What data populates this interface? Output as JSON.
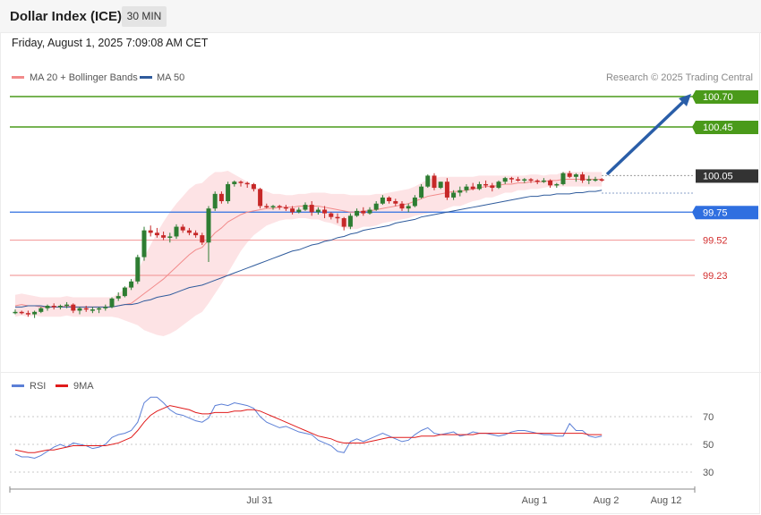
{
  "header": {
    "title": "Dollar Index (ICE)",
    "timeframe": "30 MIN"
  },
  "datetime": "Friday, August 1, 2025 7:09:08 AM CET",
  "legend": {
    "ma20": {
      "label": "MA 20 + Bollinger Bands",
      "color": "#f28b8b"
    },
    "ma50": {
      "label": "MA 50",
      "color": "#2f5b9c"
    },
    "credit": "Research © 2025 Trading Central"
  },
  "rsi_legend": {
    "rsi": {
      "label": "RSI",
      "color": "#5b7fd6"
    },
    "ma9": {
      "label": "9MA",
      "color": "#e01b1b"
    }
  },
  "levels": [
    {
      "value": "100.70",
      "kind": "resistance"
    },
    {
      "value": "100.45",
      "kind": "resistance"
    },
    {
      "value": "100.05",
      "kind": "last"
    },
    {
      "value": "99.75",
      "kind": "ma"
    },
    {
      "value": "99.52",
      "kind": "support"
    },
    {
      "value": "99.23",
      "kind": "support"
    }
  ],
  "colors": {
    "up": "#2e7d32",
    "down": "#c62828",
    "resistance": "#4a9a1a",
    "support": "#f4a0a0",
    "ma50_level": "#2f6fe0",
    "band": "#fde3e5"
  },
  "x_labels": [
    "Jul 31",
    "Aug 1",
    "Aug 2",
    "Aug 12"
  ],
  "rsi_levels": [
    "70",
    "50",
    "30"
  ],
  "chart_data": {
    "type": "candlestick",
    "title": "Dollar Index (ICE)",
    "timeframe": "30 MIN",
    "price_levels": [
      100.7,
      100.45,
      100.05,
      99.75,
      99.52,
      99.23
    ],
    "ohlc": [
      [
        98.93,
        98.95,
        98.91,
        98.93
      ],
      [
        98.93,
        98.94,
        98.91,
        98.92
      ],
      [
        98.92,
        98.94,
        98.89,
        98.91
      ],
      [
        98.91,
        98.94,
        98.88,
        98.93
      ],
      [
        98.93,
        98.97,
        98.92,
        98.96
      ],
      [
        98.96,
        98.99,
        98.94,
        98.98
      ],
      [
        98.98,
        99.0,
        98.95,
        98.97
      ],
      [
        98.97,
        98.99,
        98.95,
        98.98
      ],
      [
        98.98,
        99.01,
        98.96,
        98.99
      ],
      [
        98.99,
        99.0,
        98.92,
        98.94
      ],
      [
        98.94,
        98.97,
        98.91,
        98.96
      ],
      [
        98.96,
        98.98,
        98.93,
        98.95
      ],
      [
        98.95,
        98.97,
        98.92,
        98.95
      ],
      [
        98.95,
        98.97,
        98.92,
        98.96
      ],
      [
        98.96,
        98.99,
        98.94,
        98.97
      ],
      [
        98.97,
        99.05,
        98.96,
        99.04
      ],
      [
        99.04,
        99.09,
        99.02,
        99.06
      ],
      [
        99.06,
        99.14,
        99.05,
        99.13
      ],
      [
        99.13,
        99.2,
        99.11,
        99.18
      ],
      [
        99.18,
        99.4,
        99.16,
        99.38
      ],
      [
        99.38,
        99.63,
        99.35,
        99.6
      ],
      [
        99.6,
        99.64,
        99.55,
        99.58
      ],
      [
        99.58,
        99.62,
        99.54,
        99.56
      ],
      [
        99.56,
        99.59,
        99.52,
        99.54
      ],
      [
        99.54,
        99.58,
        99.5,
        99.55
      ],
      [
        99.55,
        99.65,
        99.53,
        99.63
      ],
      [
        99.63,
        99.65,
        99.58,
        99.6
      ],
      [
        99.6,
        99.62,
        99.56,
        99.58
      ],
      [
        99.58,
        99.6,
        99.54,
        99.56
      ],
      [
        99.56,
        99.58,
        99.48,
        99.5
      ],
      [
        99.5,
        99.8,
        99.34,
        99.78
      ],
      [
        99.78,
        99.92,
        99.76,
        99.9
      ],
      [
        99.9,
        99.92,
        99.82,
        99.84
      ],
      [
        99.84,
        100.0,
        99.82,
        99.98
      ],
      [
        99.98,
        100.01,
        99.96,
        100.0
      ],
      [
        100.0,
        100.01,
        99.96,
        99.99
      ],
      [
        99.99,
        100.0,
        99.95,
        99.98
      ],
      [
        99.98,
        99.99,
        99.92,
        99.94
      ],
      [
        99.94,
        99.95,
        99.78,
        99.8
      ],
      [
        99.8,
        99.82,
        99.78,
        99.79
      ],
      [
        99.79,
        99.81,
        99.77,
        99.8
      ],
      [
        99.8,
        99.81,
        99.77,
        99.79
      ],
      [
        99.79,
        99.81,
        99.76,
        99.78
      ],
      [
        99.78,
        99.8,
        99.73,
        99.75
      ],
      [
        99.75,
        99.79,
        99.74,
        99.77
      ],
      [
        99.77,
        99.83,
        99.76,
        99.81
      ],
      [
        99.81,
        99.84,
        99.72,
        99.75
      ],
      [
        99.75,
        99.79,
        99.73,
        99.77
      ],
      [
        99.77,
        99.8,
        99.7,
        99.74
      ],
      [
        99.74,
        99.75,
        99.69,
        99.71
      ],
      [
        99.71,
        99.74,
        99.66,
        99.7
      ],
      [
        99.7,
        99.71,
        99.6,
        99.63
      ],
      [
        99.63,
        99.74,
        99.61,
        99.72
      ],
      [
        99.72,
        99.78,
        99.71,
        99.76
      ],
      [
        99.76,
        99.79,
        99.72,
        99.74
      ],
      [
        99.74,
        99.79,
        99.73,
        99.77
      ],
      [
        99.77,
        99.84,
        99.76,
        99.82
      ],
      [
        99.82,
        99.89,
        99.81,
        99.87
      ],
      [
        99.87,
        99.88,
        99.82,
        99.84
      ],
      [
        99.84,
        99.86,
        99.8,
        99.82
      ],
      [
        99.82,
        99.84,
        99.76,
        99.78
      ],
      [
        99.78,
        99.82,
        99.75,
        99.8
      ],
      [
        99.8,
        99.89,
        99.79,
        99.87
      ],
      [
        99.87,
        99.98,
        99.86,
        99.96
      ],
      [
        99.96,
        100.06,
        99.95,
        100.05
      ],
      [
        100.05,
        100.07,
        99.93,
        99.95
      ],
      [
        99.95,
        100.0,
        99.94,
        100.0
      ],
      [
        100.0,
        100.03,
        99.85,
        99.87
      ],
      [
        99.87,
        99.93,
        99.85,
        99.91
      ],
      [
        99.91,
        99.96,
        99.88,
        99.93
      ],
      [
        99.93,
        99.98,
        99.91,
        99.96
      ],
      [
        99.96,
        99.99,
        99.93,
        99.94
      ],
      [
        99.94,
        100.0,
        99.93,
        99.98
      ],
      [
        99.98,
        100.01,
        99.95,
        99.97
      ],
      [
        99.97,
        99.99,
        99.92,
        99.95
      ],
      [
        99.95,
        100.01,
        99.94,
        100.0
      ],
      [
        100.0,
        100.04,
        99.98,
        100.03
      ],
      [
        100.03,
        100.04,
        99.99,
        100.02
      ],
      [
        100.02,
        100.04,
        100.0,
        100.01
      ],
      [
        100.01,
        100.03,
        99.99,
        100.02
      ],
      [
        100.02,
        100.03,
        99.99,
        100.01
      ],
      [
        100.01,
        100.02,
        99.98,
        100.0
      ],
      [
        100.0,
        100.03,
        99.99,
        100.01
      ],
      [
        100.01,
        100.02,
        99.95,
        99.97
      ],
      [
        99.97,
        99.99,
        99.95,
        99.98
      ],
      [
        99.98,
        100.08,
        99.97,
        100.07
      ],
      [
        100.07,
        100.09,
        100.03,
        100.04
      ],
      [
        100.04,
        100.07,
        100.0,
        100.06
      ],
      [
        100.06,
        100.08,
        99.99,
        100.01
      ],
      [
        100.01,
        100.05,
        99.98,
        100.02
      ],
      [
        100.02,
        100.04,
        100.0,
        100.02
      ],
      [
        100.02,
        100.03,
        100.0,
        100.01
      ]
    ],
    "ma20": [
      98.98,
      98.99,
      98.98,
      98.98,
      98.97,
      98.97,
      98.97,
      98.97,
      98.98,
      98.97,
      98.97,
      98.97,
      98.97,
      98.97,
      98.97,
      98.97,
      98.98,
      98.99,
      99.0,
      99.04,
      99.08,
      99.12,
      99.16,
      99.2,
      99.25,
      99.3,
      99.35,
      99.4,
      99.44,
      99.46,
      99.52,
      99.58,
      99.62,
      99.67,
      99.7,
      99.73,
      99.75,
      99.76,
      99.77,
      99.78,
      99.78,
      99.79,
      99.79,
      99.79,
      99.8,
      99.8,
      99.8,
      99.8,
      99.79,
      99.78,
      99.77,
      99.76,
      99.75,
      99.75,
      99.76,
      99.76,
      99.77,
      99.78,
      99.79,
      99.8,
      99.81,
      99.82,
      99.84,
      99.86,
      99.88,
      99.89,
      99.9,
      99.91,
      99.92,
      99.92,
      99.93,
      99.94,
      99.95,
      99.96,
      99.96,
      99.97,
      99.98,
      99.98,
      99.99,
      99.99,
      100.0,
      100.0,
      100.0,
      100.01,
      100.01,
      100.02,
      100.02,
      100.02,
      100.02,
      100.02,
      100.02,
      100.02
    ],
    "ma50": [
      98.97,
      98.97,
      98.98,
      98.98,
      98.98,
      98.97,
      98.97,
      98.97,
      98.97,
      98.97,
      98.97,
      98.97,
      98.97,
      98.97,
      98.97,
      98.97,
      98.98,
      98.99,
      98.99,
      99.0,
      99.02,
      99.03,
      99.05,
      99.06,
      99.07,
      99.09,
      99.11,
      99.13,
      99.14,
      99.15,
      99.17,
      99.19,
      99.21,
      99.23,
      99.25,
      99.27,
      99.29,
      99.31,
      99.33,
      99.35,
      99.37,
      99.39,
      99.41,
      99.43,
      99.44,
      99.46,
      99.48,
      99.49,
      99.51,
      99.52,
      99.54,
      99.55,
      99.57,
      99.58,
      99.6,
      99.61,
      99.62,
      99.63,
      99.64,
      99.66,
      99.67,
      99.68,
      99.69,
      99.71,
      99.72,
      99.73,
      99.74,
      99.75,
      99.76,
      99.77,
      99.78,
      99.79,
      99.8,
      99.81,
      99.82,
      99.83,
      99.84,
      99.85,
      99.86,
      99.87,
      99.88,
      99.88,
      99.89,
      99.89,
      99.9,
      99.9,
      99.9,
      99.91,
      99.91,
      99.92,
      99.92,
      99.93
    ],
    "bb_width": [
      0.09,
      0.09,
      0.09,
      0.08,
      0.08,
      0.08,
      0.08,
      0.08,
      0.08,
      0.08,
      0.08,
      0.08,
      0.08,
      0.08,
      0.08,
      0.08,
      0.1,
      0.13,
      0.16,
      0.22,
      0.3,
      0.36,
      0.42,
      0.47,
      0.5,
      0.52,
      0.53,
      0.54,
      0.54,
      0.53,
      0.52,
      0.5,
      0.46,
      0.42,
      0.36,
      0.3,
      0.25,
      0.2,
      0.17,
      0.14,
      0.12,
      0.11,
      0.1,
      0.1,
      0.1,
      0.1,
      0.11,
      0.11,
      0.12,
      0.12,
      0.13,
      0.14,
      0.14,
      0.14,
      0.13,
      0.13,
      0.13,
      0.12,
      0.12,
      0.12,
      0.12,
      0.12,
      0.12,
      0.13,
      0.14,
      0.14,
      0.14,
      0.13,
      0.12,
      0.12,
      0.11,
      0.1,
      0.1,
      0.09,
      0.09,
      0.08,
      0.07,
      0.07,
      0.06,
      0.06,
      0.06,
      0.06,
      0.05,
      0.05,
      0.05,
      0.06,
      0.06,
      0.06,
      0.06,
      0.06,
      0.06,
      0.06
    ],
    "forecast_target": 100.7,
    "rsi": [
      43,
      41,
      41,
      40,
      42,
      45,
      48,
      50,
      48,
      51,
      50,
      49,
      47,
      48,
      50,
      55,
      57,
      58,
      60,
      66,
      80,
      84,
      84,
      80,
      75,
      72,
      71,
      69,
      67,
      66,
      69,
      78,
      79,
      78,
      80,
      79,
      78,
      76,
      70,
      66,
      64,
      62,
      63,
      61,
      59,
      58,
      57,
      53,
      51,
      49,
      45,
      44,
      52,
      54,
      52,
      54,
      56,
      58,
      56,
      54,
      52,
      53,
      57,
      60,
      62,
      58,
      57,
      58,
      59,
      56,
      57,
      59,
      58,
      58,
      57,
      56,
      57,
      59,
      60,
      60,
      59,
      58,
      57,
      57,
      56,
      56,
      65,
      60,
      60,
      56,
      55,
      56
    ],
    "rsi_ma": [
      46,
      45,
      44,
      44,
      45,
      46,
      46,
      47,
      48,
      49,
      49,
      49,
      49,
      49,
      49,
      50,
      51,
      53,
      55,
      60,
      66,
      71,
      74,
      76,
      78,
      77,
      76,
      75,
      73,
      72,
      72,
      73,
      73,
      73,
      74,
      74,
      75,
      75,
      74,
      72,
      70,
      68,
      66,
      64,
      62,
      60,
      58,
      56,
      55,
      54,
      52,
      51,
      51,
      51,
      51,
      52,
      53,
      54,
      55,
      55,
      55,
      55,
      55,
      56,
      56,
      56,
      57,
      57,
      57,
      57,
      57,
      57,
      58,
      58,
      58,
      58,
      58,
      58,
      58,
      58,
      58,
      58,
      58,
      58,
      58,
      58,
      58,
      58,
      58,
      57,
      57,
      57
    ],
    "rsi_ylim": [
      20,
      90
    ],
    "x_labels": [
      "Jul 31",
      "Aug 1",
      "Aug 2",
      "Aug 12"
    ]
  }
}
